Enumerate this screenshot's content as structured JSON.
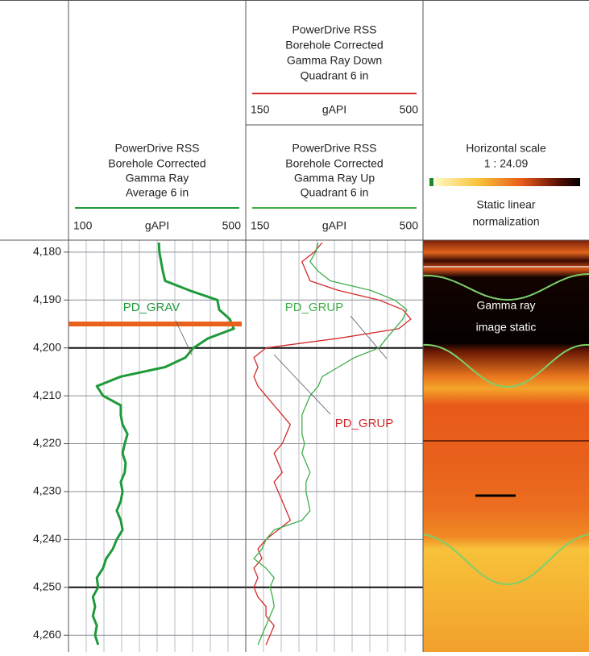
{
  "chart_data": {
    "type": "log",
    "depth": [
      4178,
      4180,
      4182,
      4184,
      4186,
      4188,
      4190,
      4192,
      4194,
      4196,
      4198,
      4200,
      4202,
      4204,
      4206,
      4208,
      4210,
      4212,
      4214,
      4216,
      4218,
      4220,
      4222,
      4224,
      4226,
      4228,
      4230,
      4232,
      4234,
      4236,
      4238,
      4240,
      4242,
      4244,
      4246,
      4248,
      4250,
      4252,
      4254,
      4256,
      4258,
      4260,
      4262
    ],
    "ylim": [
      4177.5,
      4263.5
    ],
    "yticks": [
      {
        "value": 4180,
        "label": "4,180"
      },
      {
        "value": 4190,
        "label": "4,190"
      },
      {
        "value": 4200,
        "label": "4,200"
      },
      {
        "value": 4210,
        "label": "4,210"
      },
      {
        "value": 4220,
        "label": "4,220"
      },
      {
        "value": 4230,
        "label": "4,230"
      },
      {
        "value": 4240,
        "label": "4,240"
      },
      {
        "value": 4250,
        "label": "4,250"
      },
      {
        "value": 4260,
        "label": "4,260"
      }
    ],
    "tracks": [
      {
        "series": [
          {
            "name": "PD_GRAV",
            "color": "#1f9a3a",
            "header": [
              "PowerDrive RSS",
              "Borehole Corrected",
              "Gamma Ray",
              "Average 6 in"
            ],
            "xlim": [
              100,
              500
            ],
            "xticks": [
              100,
              500
            ],
            "xlabel": "gAPI",
            "values": [
              304,
              305,
              309,
              313,
              318,
              373,
              436,
              440,
              464,
              473,
              415,
              382,
              364,
              318,
              218,
              164,
              178,
              218,
              218,
              222,
              233,
              227,
              222,
              229,
              227,
              218,
              222,
              218,
              209,
              218,
              222,
              209,
              200,
              185,
              178,
              164,
              167,
              155,
              160,
              155,
              164,
              160,
              167
            ]
          }
        ]
      },
      {
        "series": [
          {
            "name": "PD_GRUP",
            "color": "#d42a2a",
            "header": [
              "PowerDrive RSS",
              "Borehole Corrected",
              "Gamma Ray Down",
              "Quadrant 6 in"
            ],
            "xlim": [
              150,
              500
            ],
            "xticks": [
              150,
              500
            ],
            "xlabel": "gAPI",
            "values": [
              301,
              285,
              261,
              269,
              277,
              333,
              413,
              460,
              476,
              452,
              333,
              190,
              166,
              174,
              166,
              174,
              190,
              206,
              222,
              238,
              230,
              222,
              206,
              214,
              222,
              206,
              214,
              222,
              230,
              238,
              214,
              190,
              174,
              182,
              166,
              174,
              166,
              174,
              190,
              190,
              206,
              198,
              190
            ]
          },
          {
            "name": "PD_GRUP",
            "color": "#3fae4a",
            "header": [
              "PowerDrive RSS",
              "Borehole Corrected",
              "Gamma Ray Up",
              "Quadrant 6 in"
            ],
            "xlim": [
              150,
              500
            ],
            "xticks": [
              150,
              500
            ],
            "xlabel": "gAPI",
            "values": [
              293,
              288,
              277,
              293,
              317,
              397,
              444,
              468,
              460,
              444,
              428,
              413,
              365,
              333,
              301,
              293,
              277,
              269,
              261,
              261,
              261,
              266,
              261,
              269,
              277,
              269,
              269,
              273,
              277,
              261,
              206,
              190,
              182,
              166,
              190,
              206,
              198,
              203,
              206,
              198,
              190,
              182,
              174
            ]
          }
        ]
      }
    ],
    "image_track": {
      "header": [
        "Horizontal scale",
        "1 : 24.09"
      ],
      "normalization": [
        "Static linear",
        "normalization"
      ],
      "label": [
        "Gamma ray",
        "image static"
      ]
    }
  }
}
